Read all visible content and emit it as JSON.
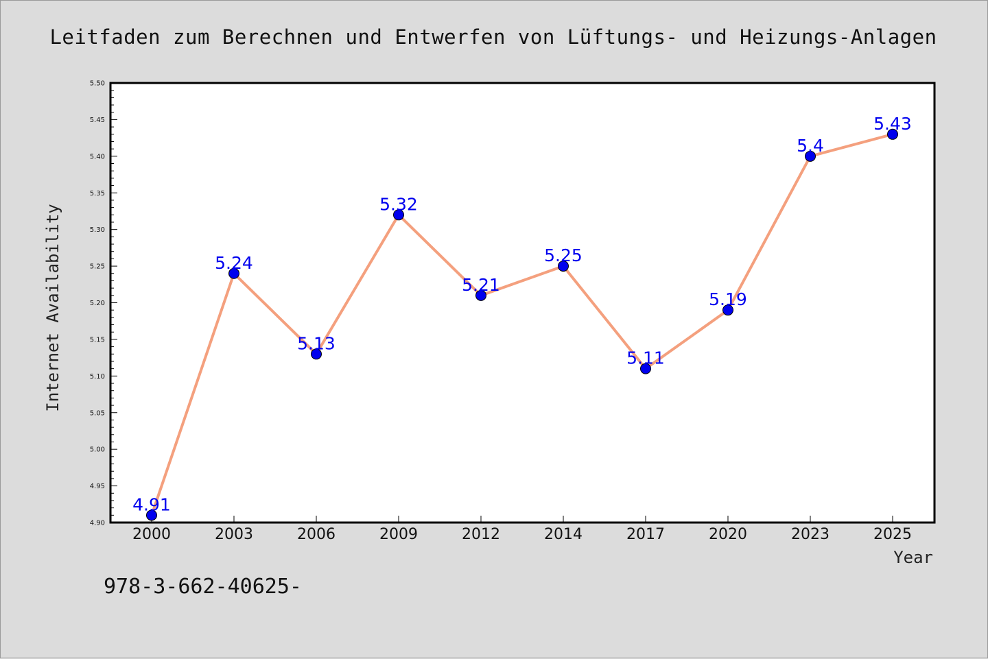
{
  "chart_data": {
    "type": "line",
    "title": "Leitfaden zum Berechnen und Entwerfen von Lüftungs- und Heizungs-Anlagen",
    "xlabel": "Year",
    "ylabel": "Internet Availability",
    "categories": [
      "2000",
      "2003",
      "2006",
      "2009",
      "2012",
      "2014",
      "2017",
      "2020",
      "2023",
      "2025"
    ],
    "series": [
      {
        "values": [
          4.91,
          5.24,
          5.13,
          5.32,
          5.21,
          5.25,
          5.11,
          5.19,
          5.4,
          5.43
        ],
        "labels": [
          "4.91",
          "5.24",
          "5.13",
          "5.32",
          "5.21",
          "5.25",
          "5.11",
          "5.19",
          "5.4",
          "5.43"
        ]
      }
    ],
    "ylim": [
      4.9,
      5.5
    ],
    "yticks": [
      "4.90",
      "4.95",
      "5.00",
      "5.05",
      "5.10",
      "5.15",
      "5.20",
      "5.25",
      "5.30",
      "5.35",
      "5.40",
      "5.45",
      "5.50"
    ],
    "grid": false,
    "colors": {
      "line": "#f4a07e",
      "marker": "#0000ee",
      "label": "#0000ee",
      "plot_background": "#ffffff",
      "figure_background": "#dcdcdc"
    }
  },
  "footer": {
    "text": "978-3-662-40625-"
  }
}
